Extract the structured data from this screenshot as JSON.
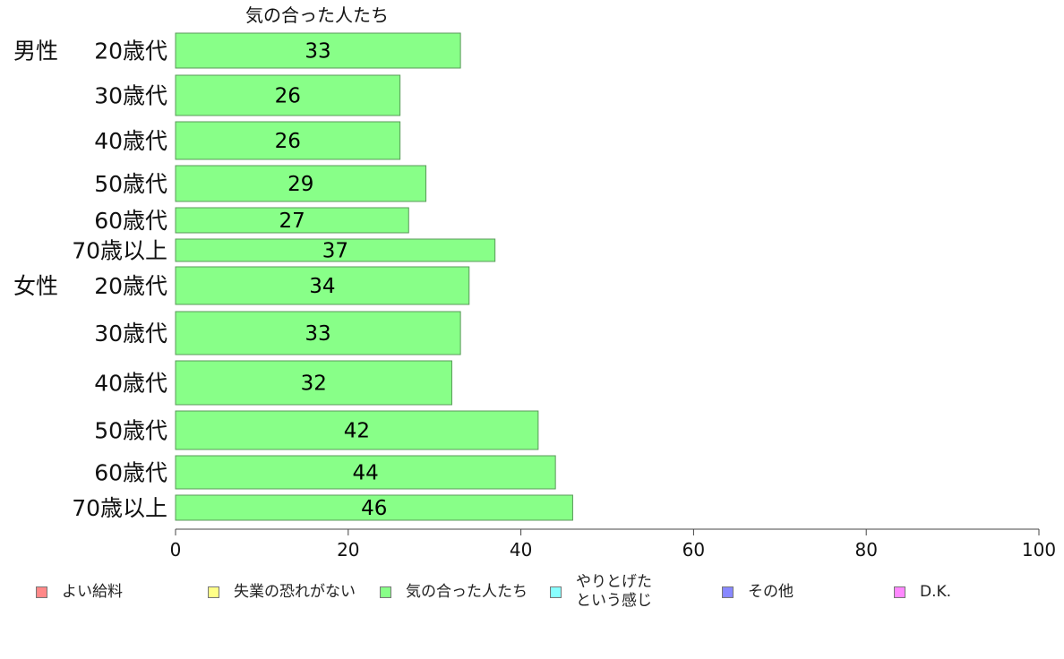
{
  "chart_data": {
    "type": "bar",
    "orientation": "horizontal",
    "title": "気の合った人たち",
    "groups": [
      "男性",
      "女性"
    ],
    "categories": [
      "20歳代",
      "30歳代",
      "40歳代",
      "50歳代",
      "60歳代",
      "70歳以上",
      "20歳代",
      "30歳代",
      "40歳代",
      "50歳代",
      "60歳代",
      "70歳以上"
    ],
    "series": [
      {
        "name": "気の合った人たち",
        "color": "#88ff88",
        "values": [
          33,
          26,
          26,
          29,
          27,
          37,
          34,
          33,
          32,
          42,
          44,
          46
        ]
      }
    ],
    "xlim": [
      0,
      100
    ],
    "xticks": [
      0,
      20,
      40,
      60,
      80,
      100
    ],
    "grid": false,
    "legend": {
      "placement": "bottom",
      "items": [
        {
          "label": "よい給料",
          "color": "#ff8888"
        },
        {
          "label": "失業の恐れがない",
          "color": "#ffff88"
        },
        {
          "label": "気の合った人たち",
          "color": "#88ff88"
        },
        {
          "label": "やりとげた\nという感じ",
          "color": "#88ffff"
        },
        {
          "label": "その他",
          "color": "#8888ff"
        },
        {
          "label": "D.K.",
          "color": "#ff88ff"
        }
      ]
    }
  }
}
